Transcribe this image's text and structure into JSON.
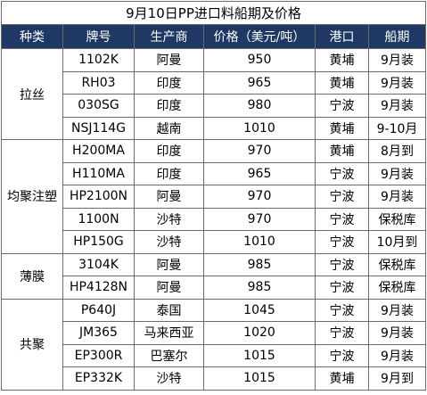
{
  "title": "9月10日PP进口料船期及价格",
  "headers": [
    "种类",
    "牌号",
    "生产商",
    "价格（美元/吨）",
    "港口",
    "船期"
  ],
  "groups": [
    {
      "category": "拉丝",
      "rows": [
        [
          "1102K",
          "阿曼",
          "950",
          "黄埔",
          "9月装"
        ],
        [
          "RH03",
          "印度",
          "965",
          "黄埔",
          "9月装"
        ],
        [
          "030SG",
          "印度",
          "980",
          "宁波",
          "9月装"
        ],
        [
          "NSJ114G",
          "越南",
          "1010",
          "黄埔",
          "9-10月"
        ]
      ]
    },
    {
      "category": "均聚注塑",
      "rows": [
        [
          "H200MA",
          "印度",
          "970",
          "黄埔",
          "8月到"
        ],
        [
          "H110MA",
          "印度",
          "965",
          "宁波",
          "9月装"
        ],
        [
          "HP2100N",
          "阿曼",
          "970",
          "宁波",
          "9月装"
        ],
        [
          "1100N",
          "沙特",
          "970",
          "宁波",
          "保税库"
        ],
        [
          "HP150G",
          "沙特",
          "1010",
          "宁波",
          "10月到"
        ]
      ]
    },
    {
      "category": "薄膜",
      "rows": [
        [
          "3104K",
          "阿曼",
          "985",
          "宁波",
          "保税库"
        ],
        [
          "HP4128N",
          "阿曼",
          "985",
          "宁波",
          "保税库"
        ]
      ]
    },
    {
      "category": "共聚",
      "rows": [
        [
          "P640J",
          "泰国",
          "1045",
          "宁波",
          "9月装"
        ],
        [
          "JM365",
          "马来西亚",
          "1020",
          "宁波",
          "9月装"
        ],
        [
          "EP300R",
          "巴塞尔",
          "1015",
          "宁波",
          "9月装"
        ],
        [
          "EP332K",
          "沙特",
          "1015",
          "黄埔",
          "9月到"
        ]
      ]
    }
  ]
}
